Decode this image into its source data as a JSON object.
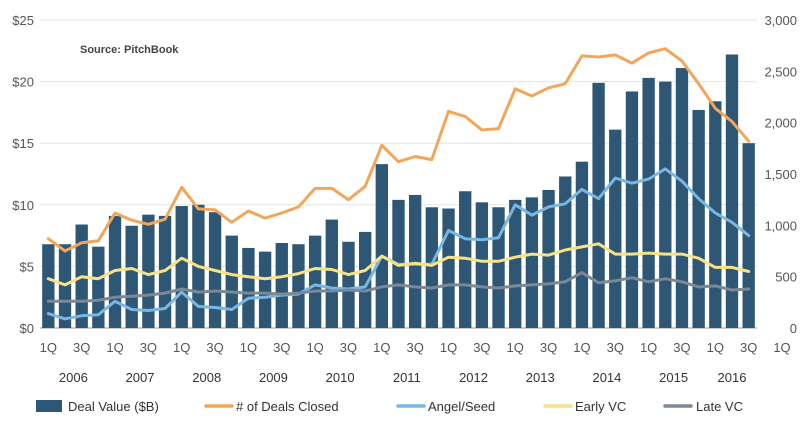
{
  "chart_data": {
    "type": "bar",
    "source": "Source: PitchBook",
    "categories": [
      "1Q 2006",
      "2Q 2006",
      "3Q 2006",
      "4Q 2006",
      "1Q 2007",
      "2Q 2007",
      "3Q 2007",
      "4Q 2007",
      "1Q 2008",
      "2Q 2008",
      "3Q 2008",
      "4Q 2008",
      "1Q 2009",
      "2Q 2009",
      "3Q 2009",
      "4Q 2009",
      "1Q 2010",
      "2Q 2010",
      "3Q 2010",
      "4Q 2010",
      "1Q 2011",
      "2Q 2011",
      "3Q 2011",
      "4Q 2011",
      "1Q 2012",
      "2Q 2012",
      "3Q 2012",
      "4Q 2012",
      "1Q 2013",
      "2Q 2013",
      "3Q 2013",
      "4Q 2013",
      "1Q 2014",
      "2Q 2014",
      "3Q 2014",
      "4Q 2014",
      "1Q 2015",
      "2Q 2015",
      "3Q 2015",
      "4Q 2015",
      "1Q 2016",
      "2Q 2016",
      "3Q 2016"
    ],
    "quarter_labels": [
      "1Q",
      "3Q",
      "1Q",
      "3Q",
      "1Q",
      "3Q",
      "1Q",
      "3Q",
      "1Q",
      "3Q",
      "1Q",
      "3Q",
      "1Q",
      "3Q",
      "1Q",
      "3Q",
      "1Q",
      "3Q",
      "1Q",
      "3Q",
      "1Q",
      "3Q",
      "1Q"
    ],
    "year_labels": [
      "2006",
      "2007",
      "2008",
      "2009",
      "2010",
      "2011",
      "2012",
      "2013",
      "2014",
      "2015",
      "2016"
    ],
    "y_left": {
      "ticks": [
        "$0",
        "$5",
        "$10",
        "$15",
        "$20",
        "$25"
      ],
      "range": [
        0,
        25
      ]
    },
    "y_right": {
      "ticks": [
        "0",
        "500",
        "1,000",
        "1,500",
        "2,000",
        "2,500",
        "3,000"
      ],
      "range": [
        0,
        3000
      ]
    },
    "series": [
      {
        "name": "Deal Value ($B)",
        "type": "bar",
        "axis": "left",
        "color": "#2e5675",
        "values": [
          6.8,
          6.8,
          8.4,
          6.6,
          9.1,
          8.3,
          9.2,
          9.1,
          9.9,
          10.0,
          9.4,
          7.5,
          6.5,
          6.2,
          6.9,
          6.8,
          7.5,
          8.8,
          7.0,
          7.8,
          13.3,
          10.4,
          10.8,
          9.8,
          9.7,
          11.1,
          10.2,
          9.8,
          10.4,
          10.6,
          11.2,
          12.3,
          13.5,
          19.9,
          16.1,
          19.2,
          20.3,
          20.0,
          21.1,
          17.7,
          18.4,
          22.2,
          15.0
        ]
      },
      {
        "name": "# of Deals Closed",
        "type": "line",
        "axis": "right",
        "color": "#f2a65a",
        "values": [
          870,
          750,
          830,
          850,
          1120,
          1050,
          1010,
          1060,
          1370,
          1160,
          1150,
          1030,
          1140,
          1070,
          1120,
          1180,
          1360,
          1360,
          1250,
          1380,
          1780,
          1620,
          1670,
          1640,
          2110,
          2060,
          1930,
          1940,
          2330,
          2260,
          2340,
          2380,
          2650,
          2640,
          2660,
          2580,
          2680,
          2720,
          2600,
          2380,
          2140,
          2010,
          1820
        ]
      },
      {
        "name": "Angel/Seed",
        "type": "line",
        "axis": "right",
        "color": "#78b7e2",
        "values": [
          140,
          90,
          120,
          130,
          260,
          180,
          170,
          190,
          350,
          210,
          200,
          180,
          290,
          300,
          320,
          330,
          420,
          390,
          380,
          400,
          700,
          620,
          620,
          620,
          950,
          870,
          860,
          880,
          1200,
          1100,
          1180,
          1210,
          1350,
          1260,
          1460,
          1410,
          1450,
          1550,
          1430,
          1260,
          1120,
          1030,
          900
        ]
      },
      {
        "name": "Early VC",
        "type": "line",
        "axis": "right",
        "color": "#f7e285",
        "values": [
          480,
          420,
          500,
          480,
          560,
          580,
          520,
          560,
          680,
          600,
          560,
          520,
          500,
          480,
          500,
          530,
          580,
          570,
          520,
          560,
          700,
          610,
          630,
          610,
          690,
          680,
          650,
          650,
          690,
          720,
          710,
          760,
          790,
          820,
          720,
          720,
          730,
          720,
          720,
          680,
          590,
          590,
          550
        ]
      },
      {
        "name": "Late VC",
        "type": "line",
        "axis": "right",
        "color": "#7b8895",
        "values": [
          260,
          260,
          260,
          270,
          300,
          310,
          320,
          340,
          380,
          350,
          360,
          350,
          340,
          340,
          330,
          340,
          360,
          360,
          370,
          360,
          400,
          420,
          400,
          390,
          420,
          420,
          400,
          390,
          410,
          420,
          430,
          450,
          540,
          440,
          460,
          490,
          450,
          480,
          450,
          400,
          410,
          370,
          380
        ]
      }
    ]
  }
}
